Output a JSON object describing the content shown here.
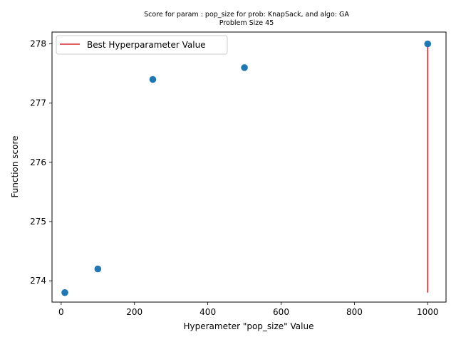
{
  "chart_data": {
    "type": "scatter",
    "title": "Score for param : pop_size for prob: KnapSack, and algo: GA",
    "subtitle": "Problem Size 45",
    "xlabel": "Hyperameter \"pop_size\" Value",
    "ylabel": "Function score",
    "xlim": [
      -25,
      1050
    ],
    "ylim": [
      273.64,
      278.2
    ],
    "xticks": [
      0,
      200,
      400,
      600,
      800,
      1000
    ],
    "yticks": [
      274,
      275,
      276,
      277,
      278
    ],
    "grid": false,
    "legend_position": "upper-left",
    "points": [
      {
        "x": 10,
        "y": 273.8
      },
      {
        "x": 100,
        "y": 274.2
      },
      {
        "x": 250,
        "y": 277.4
      },
      {
        "x": 500,
        "y": 277.6
      },
      {
        "x": 1000,
        "y": 278.0
      }
    ],
    "best_line": {
      "name": "Best Hyperparameter Value",
      "x": 1000,
      "y_from": 273.8,
      "y_to": 278.0
    },
    "colors": {
      "points": "#1f77b4",
      "best_line": "#d62728"
    }
  }
}
